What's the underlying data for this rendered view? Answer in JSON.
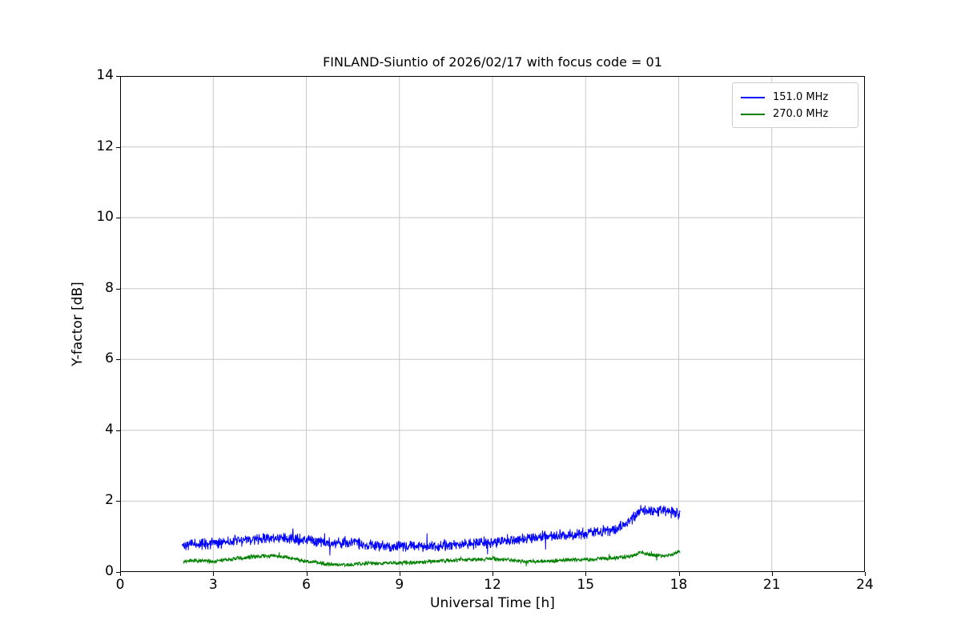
{
  "figure": {
    "title": "FINLAND-Siuntio of 2026/02/17 with focus code = 01",
    "xlabel": "Universal Time [h]",
    "ylabel": "Y-factor [dB]"
  },
  "chart_data": {
    "type": "line",
    "title": "FINLAND-Siuntio of 2026/02/17 with focus code = 01",
    "xlabel": "Universal Time [h]",
    "ylabel": "Y-factor [dB]",
    "xlim": [
      0,
      24
    ],
    "ylim": [
      0,
      14
    ],
    "xticks": [
      0,
      3,
      6,
      9,
      12,
      15,
      18,
      21,
      24
    ],
    "yticks": [
      0,
      2,
      4,
      6,
      8,
      10,
      12,
      14
    ],
    "grid": true,
    "grid_color": "#c8c8c8",
    "axis_color": "#000000",
    "legend_position": "upper right",
    "series": [
      {
        "name": "151.0 MHz",
        "color": "#0000ff",
        "x_start": 2.0,
        "x_end": 18.05,
        "noise": 0.19,
        "seed": 42,
        "trend": [
          [
            2.0,
            0.78
          ],
          [
            3.0,
            0.8
          ],
          [
            4.0,
            0.9
          ],
          [
            4.8,
            0.95
          ],
          [
            5.5,
            0.92
          ],
          [
            6.0,
            0.92
          ],
          [
            6.5,
            0.85
          ],
          [
            7.0,
            0.82
          ],
          [
            7.5,
            0.85
          ],
          [
            8.0,
            0.75
          ],
          [
            9.0,
            0.72
          ],
          [
            9.5,
            0.75
          ],
          [
            10.0,
            0.72
          ],
          [
            10.8,
            0.78
          ],
          [
            11.5,
            0.8
          ],
          [
            12.0,
            0.85
          ],
          [
            12.5,
            0.9
          ],
          [
            13.0,
            0.92
          ],
          [
            13.5,
            1.0
          ],
          [
            14.0,
            1.0
          ],
          [
            14.5,
            1.05
          ],
          [
            15.0,
            1.1
          ],
          [
            15.5,
            1.15
          ],
          [
            16.0,
            1.2
          ],
          [
            16.3,
            1.35
          ],
          [
            16.6,
            1.6
          ],
          [
            16.8,
            1.75
          ],
          [
            17.2,
            1.7
          ],
          [
            17.5,
            1.75
          ],
          [
            17.8,
            1.7
          ],
          [
            18.05,
            1.6
          ]
        ]
      },
      {
        "name": "270.0 MHz",
        "color": "#008000",
        "x_start": 2.05,
        "x_end": 18.05,
        "noise": 0.07,
        "seed": 7,
        "trend": [
          [
            2.05,
            0.3
          ],
          [
            2.5,
            0.32
          ],
          [
            3.0,
            0.3
          ],
          [
            3.5,
            0.35
          ],
          [
            4.0,
            0.4
          ],
          [
            4.5,
            0.45
          ],
          [
            5.0,
            0.45
          ],
          [
            5.5,
            0.4
          ],
          [
            6.0,
            0.3
          ],
          [
            6.5,
            0.25
          ],
          [
            7.0,
            0.2
          ],
          [
            7.5,
            0.22
          ],
          [
            8.0,
            0.25
          ],
          [
            8.5,
            0.25
          ],
          [
            9.0,
            0.25
          ],
          [
            9.5,
            0.28
          ],
          [
            10.0,
            0.3
          ],
          [
            10.5,
            0.32
          ],
          [
            11.0,
            0.35
          ],
          [
            11.5,
            0.35
          ],
          [
            12.0,
            0.38
          ],
          [
            12.5,
            0.35
          ],
          [
            13.0,
            0.3
          ],
          [
            13.5,
            0.3
          ],
          [
            14.0,
            0.32
          ],
          [
            14.5,
            0.35
          ],
          [
            15.0,
            0.35
          ],
          [
            15.5,
            0.38
          ],
          [
            16.0,
            0.4
          ],
          [
            16.5,
            0.45
          ],
          [
            16.8,
            0.55
          ],
          [
            17.0,
            0.5
          ],
          [
            17.5,
            0.45
          ],
          [
            17.8,
            0.5
          ],
          [
            18.05,
            0.6
          ]
        ]
      }
    ]
  }
}
